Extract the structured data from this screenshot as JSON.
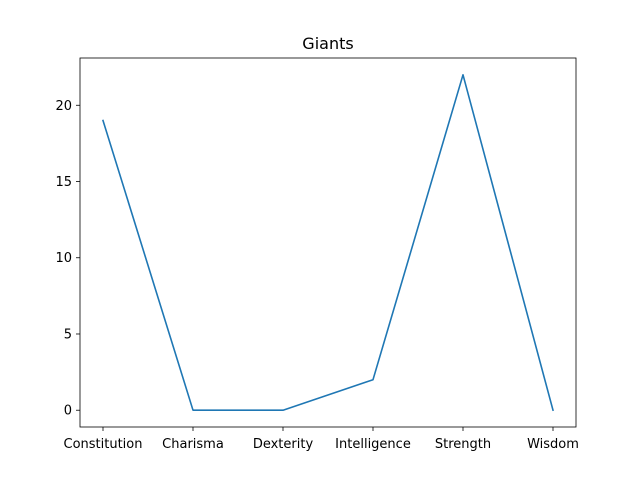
{
  "chart_data": {
    "type": "line",
    "title": "Giants",
    "xlabel": "",
    "ylabel": "",
    "categories": [
      "Constitution",
      "Charisma",
      "Dexterity",
      "Intelligence",
      "Strength",
      "Wisdom"
    ],
    "series": [
      {
        "values": [
          19,
          0,
          0,
          2,
          22,
          0
        ]
      }
    ],
    "ylim": [
      -1.1,
      23.1
    ],
    "yticks": [
      0,
      5,
      10,
      15,
      20
    ],
    "grid": false,
    "colors": {
      "line": "#1f77b4",
      "axis": "#000000"
    }
  }
}
